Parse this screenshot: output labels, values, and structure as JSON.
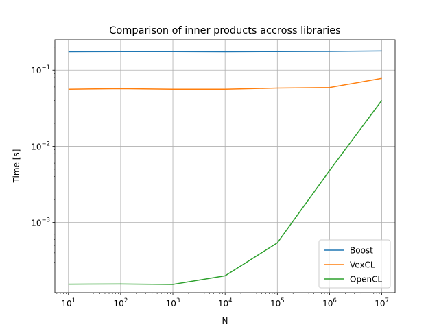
{
  "chart_data": {
    "type": "line",
    "title": "Comparison of inner products accross libraries",
    "xlabel": "N",
    "ylabel": "Time [s]",
    "xscale": "log",
    "yscale": "log",
    "xlim": [
      5.5,
      18000000
    ],
    "ylim": [
      0.00012,
      0.25
    ],
    "grid": true,
    "legend_position": "lower-right",
    "x": [
      10,
      100,
      1000,
      10000,
      100000,
      1000000,
      10000000
    ],
    "x_ticks": [
      {
        "value": 10,
        "base": "10",
        "exp": "1"
      },
      {
        "value": 100,
        "base": "10",
        "exp": "2"
      },
      {
        "value": 1000,
        "base": "10",
        "exp": "3"
      },
      {
        "value": 10000,
        "base": "10",
        "exp": "4"
      },
      {
        "value": 100000,
        "base": "10",
        "exp": "5"
      },
      {
        "value": 1000000,
        "base": "10",
        "exp": "6"
      },
      {
        "value": 10000000,
        "base": "10",
        "exp": "7"
      }
    ],
    "y_ticks": [
      {
        "value": 0.001,
        "base": "10",
        "exp": "−3"
      },
      {
        "value": 0.01,
        "base": "10",
        "exp": "−2"
      },
      {
        "value": 0.1,
        "base": "10",
        "exp": "−1"
      }
    ],
    "series": [
      {
        "name": "Boost",
        "color": "#1f77b4",
        "values": [
          0.174,
          0.175,
          0.175,
          0.174,
          0.175,
          0.176,
          0.178
        ]
      },
      {
        "name": "VexCL",
        "color": "#ff7f0e",
        "values": [
          0.056,
          0.057,
          0.056,
          0.056,
          0.058,
          0.059,
          0.078
        ]
      },
      {
        "name": "OpenCL",
        "color": "#2ca02c",
        "values": [
          0.000155,
          0.000156,
          0.000154,
          0.0002,
          0.00054,
          0.0048,
          0.04
        ]
      }
    ]
  }
}
